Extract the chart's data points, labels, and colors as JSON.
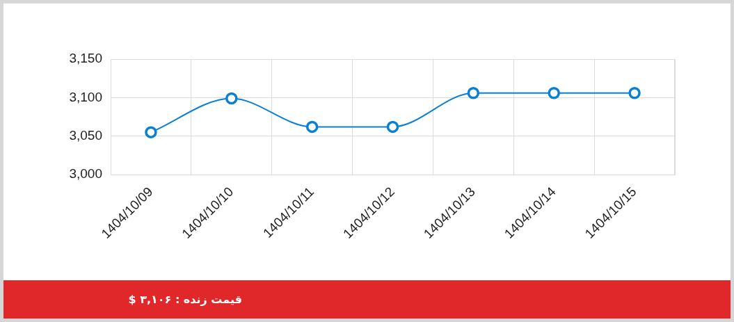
{
  "chart_data": {
    "type": "line",
    "categories": [
      "1404/10/09",
      "1404/10/10",
      "1404/10/11",
      "1404/10/12",
      "1404/10/13",
      "1404/10/14",
      "1404/10/15"
    ],
    "series": [
      {
        "color": "#0a7fd6",
        "values": [
          3055,
          3099,
          3062,
          3062,
          3106,
          3106,
          3106
        ]
      }
    ],
    "ylim": [
      3000,
      3150
    ],
    "yticks": [
      {
        "value": 3000,
        "label": "3,000"
      },
      {
        "value": 3050,
        "label": "3,050"
      },
      {
        "value": 3100,
        "label": "3,100"
      },
      {
        "value": 3150,
        "label": "3,150"
      }
    ],
    "grid": true,
    "marker": "circle",
    "line_style": "solid",
    "annotations": [
      "قیمت زنده : ۳,۱۰۶ $"
    ]
  }
}
